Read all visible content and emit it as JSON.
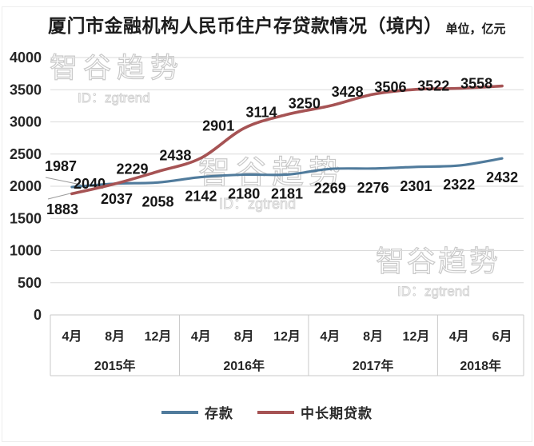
{
  "page": {
    "title": "厦门市金融机构人民币住户存贷款情况（境内）",
    "unit": "单位，亿元"
  },
  "watermark": {
    "brand": "智谷趋势",
    "id": "ID：zgtrend"
  },
  "chart_data": {
    "type": "line",
    "title": "厦门市金融机构人民币住户存贷款情况（境内）",
    "unit": "亿元",
    "grid": true,
    "legend_position": "bottom",
    "ylim": [
      0,
      4000
    ],
    "y_ticks": [
      0,
      500,
      1000,
      1500,
      2000,
      2500,
      3000,
      3500,
      4000
    ],
    "x_groups": [
      {
        "year": "2015年",
        "months": [
          "4月",
          "8月",
          "12月"
        ]
      },
      {
        "year": "2016年",
        "months": [
          "4月",
          "8月",
          "12月"
        ]
      },
      {
        "year": "2017年",
        "months": [
          "4月",
          "8月",
          "12月"
        ]
      },
      {
        "year": "2018年",
        "months": [
          "4月",
          "6月"
        ]
      }
    ],
    "series": [
      {
        "name": "存款",
        "color": "#507b9c",
        "values": [
          1987,
          2040,
          2058,
          2142,
          2180,
          2181,
          2269,
          2276,
          2301,
          2322,
          2432
        ]
      },
      {
        "name": "中长期贷款",
        "color": "#a65354",
        "values": [
          1883,
          2037,
          2229,
          2438,
          2901,
          3114,
          3250,
          3428,
          3506,
          3522,
          3558
        ]
      }
    ],
    "colors": {
      "grid": "#dadada",
      "axis_table": "#c9c9c9",
      "leader": "#9a9a9a",
      "text": "#262626"
    }
  }
}
